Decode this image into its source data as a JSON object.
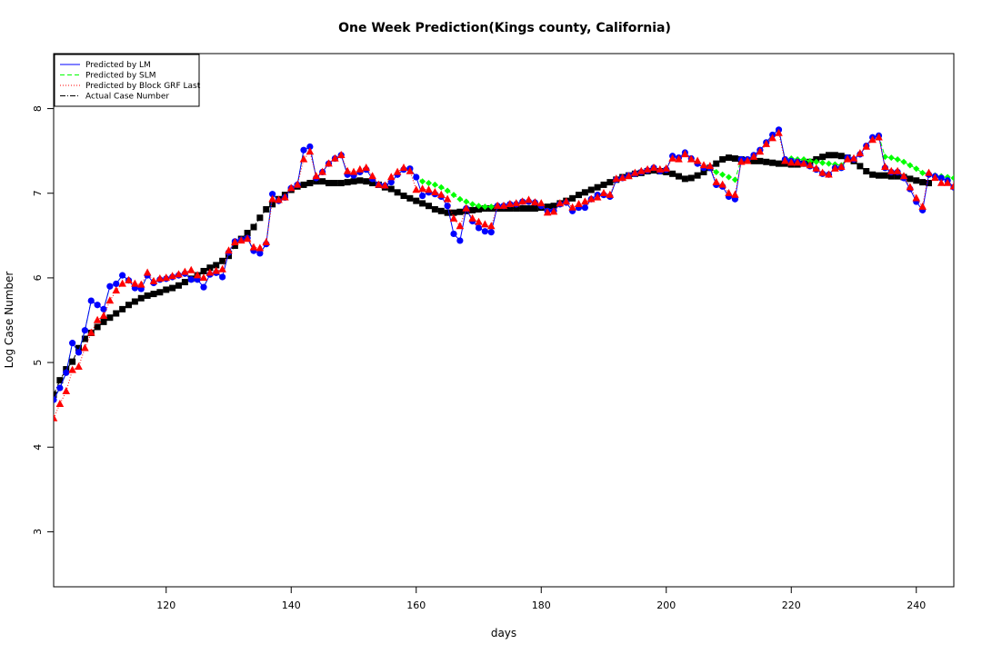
{
  "chart_data": {
    "type": "line",
    "title": "One Week Prediction(Kings county, California)",
    "xlabel": "days",
    "ylabel": "Log Case Number",
    "xlim": [
      102,
      246
    ],
    "ylim": [
      2.35,
      8.65
    ],
    "xticks": [
      120,
      140,
      160,
      180,
      200,
      220,
      240
    ],
    "yticks": [
      3,
      4,
      5,
      6,
      7,
      8
    ],
    "grid": false,
    "legend_position": "top-left",
    "legend": [
      {
        "label": "Predicted by LM",
        "color": "#0000FF",
        "line": "solid"
      },
      {
        "label": "Predicted by SLM",
        "color": "#00FF00",
        "line": "dashed"
      },
      {
        "label": "Predicted by Block GRF Last",
        "color": "#FF0000",
        "line": "dotted"
      },
      {
        "label": "Actual Case Number",
        "color": "#000000",
        "line": "dotdash"
      }
    ],
    "x_start": 102,
    "series": [
      {
        "name": "Predicted by LM",
        "color": "#0000FF",
        "marker": "circle",
        "values": [
          4.56,
          4.7,
          4.88,
          5.23,
          5.12,
          5.38,
          5.73,
          5.68,
          5.63,
          5.9,
          5.93,
          6.03,
          5.97,
          5.88,
          5.87,
          6.03,
          5.94,
          5.98,
          5.99,
          6.01,
          6.03,
          6.05,
          5.98,
          5.98,
          5.89,
          6.04,
          6.06,
          6.01,
          6.3,
          6.43,
          6.45,
          6.47,
          6.32,
          6.29,
          6.4,
          6.99,
          6.91,
          6.95,
          7.06,
          7.1,
          7.51,
          7.55,
          7.18,
          7.25,
          7.35,
          7.41,
          7.45,
          7.22,
          7.21,
          7.25,
          7.28,
          7.17,
          7.1,
          7.09,
          7.13,
          7.22,
          7.28,
          7.29,
          7.19,
          6.97,
          7.01,
          6.99,
          6.96,
          6.85,
          6.52,
          6.44,
          6.82,
          6.67,
          6.59,
          6.55,
          6.54,
          6.85,
          6.85,
          6.87,
          6.87,
          6.9,
          6.9,
          6.89,
          6.85,
          6.79,
          6.79,
          6.87,
          6.89,
          6.79,
          6.83,
          6.83,
          6.93,
          6.98,
          6.98,
          6.96,
          7.16,
          7.18,
          7.21,
          7.23,
          7.25,
          7.27,
          7.3,
          7.26,
          7.28,
          7.44,
          7.42,
          7.48,
          7.41,
          7.35,
          7.3,
          7.3,
          7.1,
          7.08,
          6.96,
          6.93,
          7.4,
          7.4,
          7.45,
          7.51,
          7.6,
          7.69,
          7.75,
          7.4,
          7.38,
          7.37,
          7.35,
          7.32,
          7.28,
          7.23,
          7.22,
          7.3,
          7.3,
          7.42,
          7.4,
          7.46,
          7.56,
          7.66,
          7.68,
          7.3,
          7.25,
          7.25,
          7.18,
          7.05,
          6.9,
          6.8,
          7.22,
          7.2,
          7.18,
          7.15,
          7.07,
          7.07,
          7.05,
          7.04,
          7.02
        ]
      },
      {
        "name": "Predicted by SLM",
        "color": "#00FF00",
        "marker": "diamond",
        "values": [
          4.56,
          4.7,
          4.88,
          5.23,
          5.12,
          5.38,
          5.73,
          5.68,
          5.63,
          5.9,
          5.93,
          6.03,
          5.97,
          5.88,
          5.87,
          6.03,
          5.94,
          5.98,
          5.99,
          6.01,
          6.03,
          6.05,
          5.98,
          5.98,
          5.89,
          6.04,
          6.06,
          6.01,
          6.3,
          6.43,
          6.45,
          6.47,
          6.32,
          6.29,
          6.4,
          6.99,
          6.91,
          6.95,
          7.06,
          7.1,
          7.51,
          7.55,
          7.18,
          7.25,
          7.35,
          7.41,
          7.45,
          7.22,
          7.21,
          7.25,
          7.28,
          7.17,
          7.1,
          7.09,
          7.13,
          7.22,
          7.28,
          7.29,
          7.19,
          7.14,
          7.12,
          7.1,
          7.07,
          7.03,
          6.98,
          6.93,
          6.9,
          6.87,
          6.85,
          6.84,
          6.84,
          6.85,
          6.85,
          6.87,
          6.87,
          6.9,
          6.9,
          6.89,
          6.85,
          6.79,
          6.79,
          6.87,
          6.89,
          6.79,
          6.83,
          6.83,
          6.93,
          6.98,
          6.98,
          6.96,
          7.16,
          7.18,
          7.21,
          7.23,
          7.25,
          7.27,
          7.3,
          7.26,
          7.28,
          7.44,
          7.42,
          7.48,
          7.41,
          7.35,
          7.3,
          7.3,
          7.25,
          7.22,
          7.19,
          7.16,
          7.4,
          7.4,
          7.45,
          7.51,
          7.6,
          7.69,
          7.75,
          7.4,
          7.41,
          7.4,
          7.4,
          7.38,
          7.37,
          7.36,
          7.35,
          7.34,
          7.33,
          7.42,
          7.4,
          7.46,
          7.56,
          7.66,
          7.68,
          7.43,
          7.42,
          7.4,
          7.37,
          7.33,
          7.29,
          7.24,
          7.22,
          7.21,
          7.2,
          7.19,
          7.18,
          7.17,
          7.15,
          7.13,
          7.11
        ]
      },
      {
        "name": "Predicted by Block GRF Last",
        "color": "#FF0000",
        "marker": "triangle",
        "values": [
          4.34,
          4.51,
          4.66,
          4.91,
          4.95,
          5.17,
          5.35,
          5.5,
          5.55,
          5.73,
          5.85,
          5.93,
          5.97,
          5.93,
          5.92,
          6.06,
          5.96,
          5.99,
          6.0,
          6.02,
          6.04,
          6.07,
          6.09,
          6.03,
          6.0,
          6.06,
          6.08,
          6.1,
          6.32,
          6.42,
          6.44,
          6.46,
          6.36,
          6.35,
          6.42,
          6.93,
          6.92,
          6.95,
          7.06,
          7.1,
          7.4,
          7.49,
          7.2,
          7.25,
          7.35,
          7.41,
          7.45,
          7.26,
          7.25,
          7.28,
          7.3,
          7.2,
          7.1,
          7.09,
          7.19,
          7.25,
          7.3,
          7.26,
          7.04,
          7.05,
          7.04,
          7.01,
          6.98,
          6.93,
          6.7,
          6.61,
          6.82,
          6.7,
          6.66,
          6.63,
          6.61,
          6.85,
          6.85,
          6.87,
          6.88,
          6.9,
          6.92,
          6.89,
          6.88,
          6.77,
          6.78,
          6.88,
          6.9,
          6.83,
          6.87,
          6.9,
          6.93,
          6.95,
          7.0,
          6.98,
          7.17,
          7.18,
          7.2,
          7.24,
          7.26,
          7.28,
          7.3,
          7.28,
          7.29,
          7.41,
          7.4,
          7.46,
          7.4,
          7.38,
          7.33,
          7.32,
          7.13,
          7.1,
          7.0,
          6.98,
          7.37,
          7.38,
          7.43,
          7.49,
          7.58,
          7.65,
          7.71,
          7.38,
          7.36,
          7.36,
          7.35,
          7.33,
          7.29,
          7.24,
          7.22,
          7.29,
          7.31,
          7.4,
          7.41,
          7.47,
          7.55,
          7.63,
          7.66,
          7.31,
          7.26,
          7.26,
          7.2,
          7.07,
          6.94,
          6.84,
          7.24,
          7.18,
          7.12,
          7.12,
          7.08,
          7.07,
          7.05,
          7.04,
          7.02
        ]
      },
      {
        "name": "Actual Case Number",
        "color": "#000000",
        "marker": "square",
        "values": [
          4.62,
          4.79,
          4.92,
          5.01,
          5.17,
          5.28,
          5.35,
          5.42,
          5.48,
          5.53,
          5.58,
          5.63,
          5.68,
          5.72,
          5.76,
          5.79,
          5.81,
          5.83,
          5.86,
          5.88,
          5.91,
          5.95,
          5.99,
          6.03,
          6.08,
          6.12,
          6.15,
          6.2,
          6.26,
          6.38,
          6.46,
          6.53,
          6.6,
          6.71,
          6.81,
          6.87,
          6.93,
          6.98,
          7.04,
          7.08,
          7.1,
          7.12,
          7.14,
          7.14,
          7.12,
          7.12,
          7.12,
          7.13,
          7.14,
          7.15,
          7.14,
          7.12,
          7.1,
          7.07,
          7.05,
          7.01,
          6.97,
          6.94,
          6.91,
          6.88,
          6.85,
          6.81,
          6.79,
          6.77,
          6.77,
          6.78,
          6.79,
          6.8,
          6.81,
          6.82,
          6.82,
          6.82,
          6.82,
          6.82,
          6.82,
          6.82,
          6.82,
          6.82,
          6.83,
          6.84,
          6.85,
          6.88,
          6.91,
          6.94,
          6.98,
          7.01,
          7.04,
          7.07,
          7.1,
          7.13,
          7.16,
          7.19,
          7.21,
          7.23,
          7.24,
          7.26,
          7.27,
          7.26,
          7.25,
          7.23,
          7.2,
          7.17,
          7.18,
          7.21,
          7.25,
          7.3,
          7.35,
          7.4,
          7.42,
          7.41,
          7.4,
          7.39,
          7.38,
          7.38,
          7.37,
          7.36,
          7.35,
          7.35,
          7.34,
          7.34,
          7.35,
          7.37,
          7.4,
          7.43,
          7.45,
          7.45,
          7.44,
          7.42,
          7.38,
          7.32,
          7.26,
          7.22,
          7.21,
          7.21,
          7.2,
          7.2,
          7.19,
          7.17,
          7.15,
          7.13,
          7.12
        ]
      }
    ]
  }
}
